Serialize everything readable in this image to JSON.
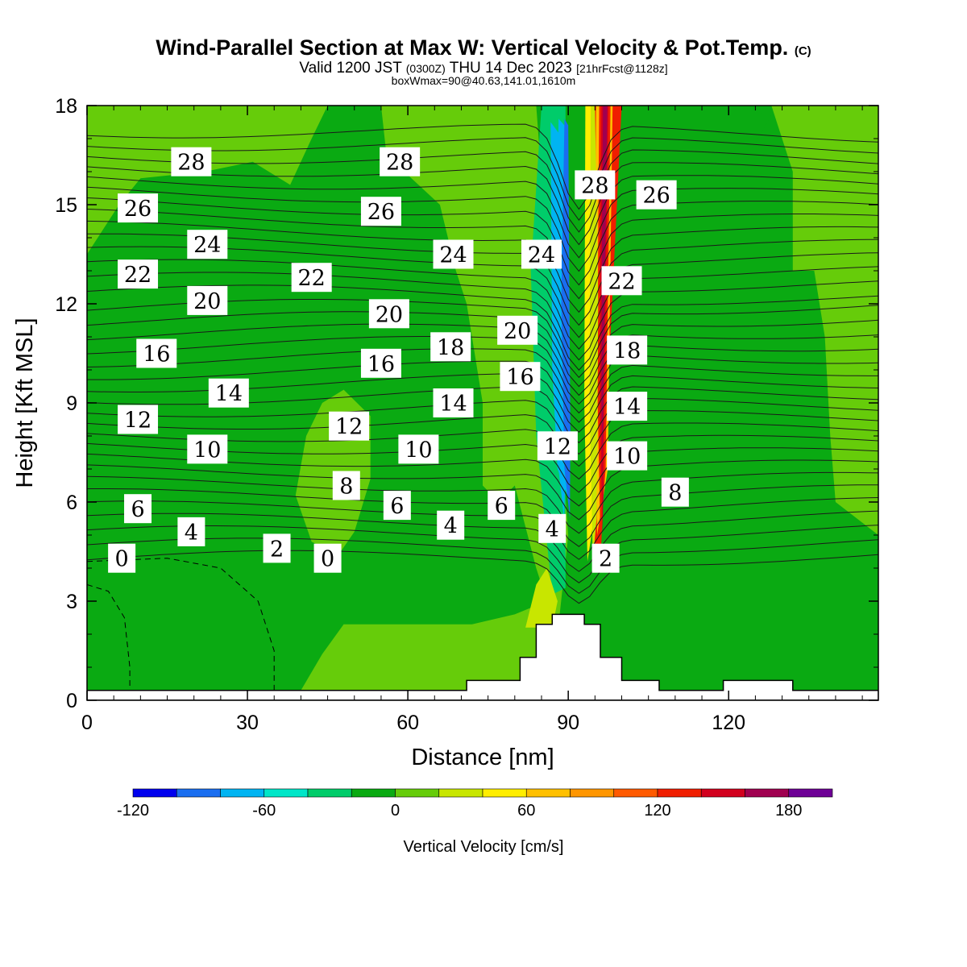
{
  "header": {
    "title": "Wind-Parallel Section at Max W: Vertical Velocity & Pot.Temp.",
    "title_mark": "(C)",
    "valid_prefix": "Valid 1200 JST",
    "valid_utc": "(0300Z)",
    "valid_date": "THU 14 Dec 2023",
    "forecast": "[21hrFcst@1128z]",
    "box_info": "boxWmax=90@40.63,141.01,1610m"
  },
  "chart_data": {
    "type": "heatmap",
    "title": "Wind-Parallel Section at Max W: Vertical Velocity & Pot.Temp.",
    "xlabel": "Distance [nm]",
    "ylabel": "Height [Kft MSL]",
    "xlim": [
      0,
      148
    ],
    "ylim": [
      0,
      18
    ],
    "x_ticks": [
      0,
      30,
      60,
      90,
      120
    ],
    "y_ticks": [
      0,
      3,
      6,
      9,
      12,
      15,
      18
    ],
    "colorbar": {
      "label": "Vertical Velocity [cm/s]",
      "min": -120,
      "max": 200,
      "step": 20,
      "tick_values": [
        -120,
        -60,
        0,
        60,
        120,
        180
      ],
      "tick_labels": [
        "-120",
        "-60",
        "0",
        "60",
        "120",
        "180"
      ],
      "colors": [
        "#0000ee",
        "#1a6ef0",
        "#00b4f2",
        "#00e6c8",
        "#00cc6a",
        "#0aaa12",
        "#66cc0a",
        "#c8e600",
        "#ffee00",
        "#ffc000",
        "#ff9600",
        "#ff5a00",
        "#f01e00",
        "#d2001e",
        "#a00050",
        "#6e0096"
      ]
    },
    "background_velocity_color": "#0aaa12",
    "regions": [
      {
        "velocity_range": [
          0,
          20
        ],
        "description_points": [
          [
            0,
            13.5
          ],
          [
            6,
            15
          ],
          [
            10,
            15.8
          ],
          [
            22,
            16
          ],
          [
            31,
            16.3
          ],
          [
            38,
            15.6
          ],
          [
            42,
            17
          ],
          [
            45,
            18
          ],
          [
            0,
            18
          ]
        ]
      },
      {
        "velocity_range": [
          0,
          20
        ],
        "description_points": [
          [
            55,
            18
          ],
          [
            56,
            16.5
          ],
          [
            66,
            15
          ],
          [
            69,
            13
          ],
          [
            71,
            12
          ],
          [
            72,
            11
          ],
          [
            74,
            9
          ],
          [
            74,
            6.5
          ],
          [
            77,
            6
          ],
          [
            80,
            6.5
          ],
          [
            84,
            4
          ],
          [
            86,
            3
          ],
          [
            80,
            2.6
          ],
          [
            72,
            2.3
          ],
          [
            65,
            2.3
          ],
          [
            58,
            2.3
          ],
          [
            48,
            2.3
          ],
          [
            44,
            1.4
          ],
          [
            40,
            0.3
          ],
          [
            96,
            0.3
          ],
          [
            88,
            2
          ],
          [
            90,
            5
          ],
          [
            84,
            18
          ]
        ]
      },
      {
        "velocity_range": [
          0,
          20
        ],
        "description_points": [
          [
            44,
            9
          ],
          [
            48,
            9.4
          ],
          [
            53,
            8.6
          ],
          [
            53,
            6.7
          ],
          [
            50,
            5.1
          ],
          [
            47,
            4.4
          ],
          [
            42,
            4.8
          ],
          [
            39,
            6.2
          ],
          [
            41,
            8
          ]
        ]
      },
      {
        "velocity_range": [
          0,
          20
        ],
        "description_points": [
          [
            111,
            18
          ],
          [
            128,
            18
          ],
          [
            132,
            16
          ],
          [
            132,
            13
          ],
          [
            136,
            13
          ],
          [
            138,
            11
          ],
          [
            139,
            8
          ],
          [
            140,
            6
          ],
          [
            148,
            5
          ],
          [
            148,
            18
          ]
        ]
      },
      {
        "velocity_range": [
          -20,
          0
        ],
        "description_points": [
          [
            103,
            18
          ],
          [
            120,
            18
          ],
          [
            128,
            17.7
          ],
          [
            124,
            16.6
          ],
          [
            118,
            16.3
          ],
          [
            114,
            16
          ],
          [
            110,
            15.6
          ],
          [
            103,
            15
          ]
        ]
      },
      {
        "velocity_range": [
          -60,
          -20
        ],
        "description_points": [
          [
            85,
            18
          ],
          [
            89.5,
            18
          ],
          [
            89.5,
            3.4
          ],
          [
            87,
            3.2
          ],
          [
            84,
            8
          ],
          [
            83,
            13
          ]
        ]
      },
      {
        "velocity_range": [
          -100,
          -60
        ],
        "description_points": [
          [
            86.7,
            17.5
          ],
          [
            89,
            17
          ],
          [
            90.3,
            6
          ],
          [
            88,
            7
          ],
          [
            87,
            10
          ]
        ]
      },
      {
        "velocity_range": [
          -120,
          -100
        ],
        "description_points": [
          [
            89,
            13
          ],
          [
            90,
            12
          ],
          [
            90.4,
            8
          ],
          [
            89,
            10
          ]
        ]
      },
      {
        "velocity_range": [
          40,
          200
        ],
        "description_points": [
          [
            94,
            18
          ],
          [
            100,
            18
          ],
          [
            97,
            8
          ],
          [
            96,
            4
          ],
          [
            94.5,
            4.5
          ],
          [
            95.5,
            8
          ],
          [
            95,
            13
          ]
        ]
      },
      {
        "velocity_range": [
          20,
          40
        ],
        "description_points": [
          [
            82,
            2.2
          ],
          [
            87,
            2.2
          ],
          [
            88,
            3
          ],
          [
            86,
            4
          ],
          [
            84,
            3.5
          ]
        ]
      }
    ],
    "isentrope_labels": [
      {
        "value": "0",
        "x": 6.5,
        "y": 4.3
      },
      {
        "value": "2",
        "x": 35.5,
        "y": 4.6
      },
      {
        "value": "0",
        "x": 45,
        "y": 4.3
      },
      {
        "value": "4",
        "x": 19.5,
        "y": 5.1
      },
      {
        "value": "6",
        "x": 9.5,
        "y": 5.8
      },
      {
        "value": "6",
        "x": 58,
        "y": 5.9
      },
      {
        "value": "4",
        "x": 68,
        "y": 5.3
      },
      {
        "value": "6",
        "x": 77.5,
        "y": 5.9
      },
      {
        "value": "4",
        "x": 87,
        "y": 5.2
      },
      {
        "value": "2",
        "x": 97,
        "y": 4.3
      },
      {
        "value": "8",
        "x": 48.5,
        "y": 6.5
      },
      {
        "value": "8",
        "x": 110,
        "y": 6.3
      },
      {
        "value": "10",
        "x": 22.5,
        "y": 7.6
      },
      {
        "value": "10",
        "x": 62,
        "y": 7.6
      },
      {
        "value": "10",
        "x": 101,
        "y": 7.4
      },
      {
        "value": "12",
        "x": 9.5,
        "y": 8.5
      },
      {
        "value": "12",
        "x": 49,
        "y": 8.3
      },
      {
        "value": "12",
        "x": 88,
        "y": 7.7
      },
      {
        "value": "14",
        "x": 26.5,
        "y": 9.3
      },
      {
        "value": "14",
        "x": 68.5,
        "y": 9.0
      },
      {
        "value": "14",
        "x": 101,
        "y": 8.9
      },
      {
        "value": "16",
        "x": 13,
        "y": 10.5
      },
      {
        "value": "16",
        "x": 55,
        "y": 10.2
      },
      {
        "value": "16",
        "x": 81,
        "y": 9.8
      },
      {
        "value": "18",
        "x": 68,
        "y": 10.7
      },
      {
        "value": "18",
        "x": 101,
        "y": 10.6
      },
      {
        "value": "20",
        "x": 22.5,
        "y": 12.1
      },
      {
        "value": "20",
        "x": 56.5,
        "y": 11.7
      },
      {
        "value": "20",
        "x": 80.5,
        "y": 11.2
      },
      {
        "value": "22",
        "x": 9.5,
        "y": 12.9
      },
      {
        "value": "22",
        "x": 42,
        "y": 12.8
      },
      {
        "value": "22",
        "x": 100,
        "y": 12.7
      },
      {
        "value": "24",
        "x": 22.5,
        "y": 13.8
      },
      {
        "value": "24",
        "x": 68.5,
        "y": 13.5
      },
      {
        "value": "24",
        "x": 85,
        "y": 13.5
      },
      {
        "value": "26",
        "x": 9.5,
        "y": 14.9
      },
      {
        "value": "26",
        "x": 55,
        "y": 14.8
      },
      {
        "value": "26",
        "x": 106.5,
        "y": 15.3
      },
      {
        "value": "28",
        "x": 19.5,
        "y": 16.3
      },
      {
        "value": "28",
        "x": 58.5,
        "y": 16.3
      },
      {
        "value": "28",
        "x": 95,
        "y": 15.6
      }
    ],
    "terrain_profile": [
      [
        0,
        0.3
      ],
      [
        71,
        0.3
      ],
      [
        71,
        0.6
      ],
      [
        81,
        0.6
      ],
      [
        81,
        1.3
      ],
      [
        84,
        1.3
      ],
      [
        84,
        2.3
      ],
      [
        87,
        2.3
      ],
      [
        87,
        2.6
      ],
      [
        93,
        2.6
      ],
      [
        93,
        2.3
      ],
      [
        96,
        2.3
      ],
      [
        96,
        1.3
      ],
      [
        100,
        1.3
      ],
      [
        100,
        0.6
      ],
      [
        107,
        0.6
      ],
      [
        107,
        0.3
      ],
      [
        119,
        0.3
      ],
      [
        119,
        0.6
      ],
      [
        132,
        0.6
      ],
      [
        132,
        0.3
      ],
      [
        148,
        0.3
      ]
    ]
  }
}
